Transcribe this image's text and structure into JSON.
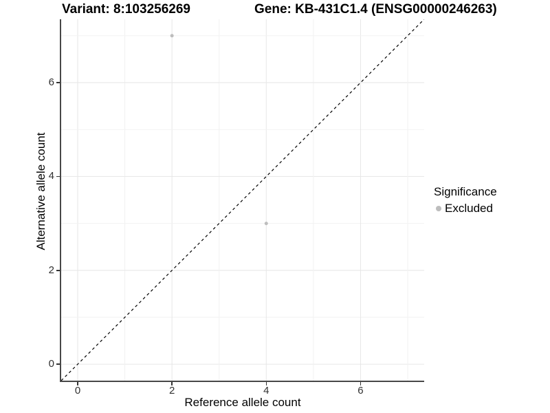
{
  "chart_data": {
    "type": "scatter",
    "titles": {
      "left": "Variant: 8:103256269",
      "right": "Gene: KB-431C1.4 (ENSG00000246263)"
    },
    "xlabel": "Reference allele count",
    "ylabel": "Alternative allele count",
    "xlim": [
      -0.35,
      7.35
    ],
    "ylim": [
      -0.35,
      7.35
    ],
    "x_ticks": [
      0,
      2,
      4,
      6
    ],
    "y_ticks": [
      0,
      2,
      4,
      6
    ],
    "grid_positions": [
      0,
      1,
      2,
      3,
      4,
      5,
      6,
      7
    ],
    "points": [
      {
        "x": 2,
        "y": 7,
        "significance": "Excluded"
      },
      {
        "x": 4,
        "y": 3,
        "significance": "Excluded"
      }
    ],
    "reference_line": {
      "slope": 1,
      "intercept": 0,
      "style": "dashed"
    },
    "legend": {
      "title": "Significance",
      "position": "right",
      "entries": [
        {
          "label": "Excluded",
          "color": "#bdbdbd"
        }
      ]
    },
    "colors": {
      "background": "#ffffff",
      "point": "#bdbdbd",
      "grid_major": "#e6e6e6",
      "grid_minor": "#f2f2f2",
      "axis_line": "#474747",
      "tick_mark": "#333333",
      "tick_label": "#303030",
      "reference_line": "#000000"
    }
  }
}
